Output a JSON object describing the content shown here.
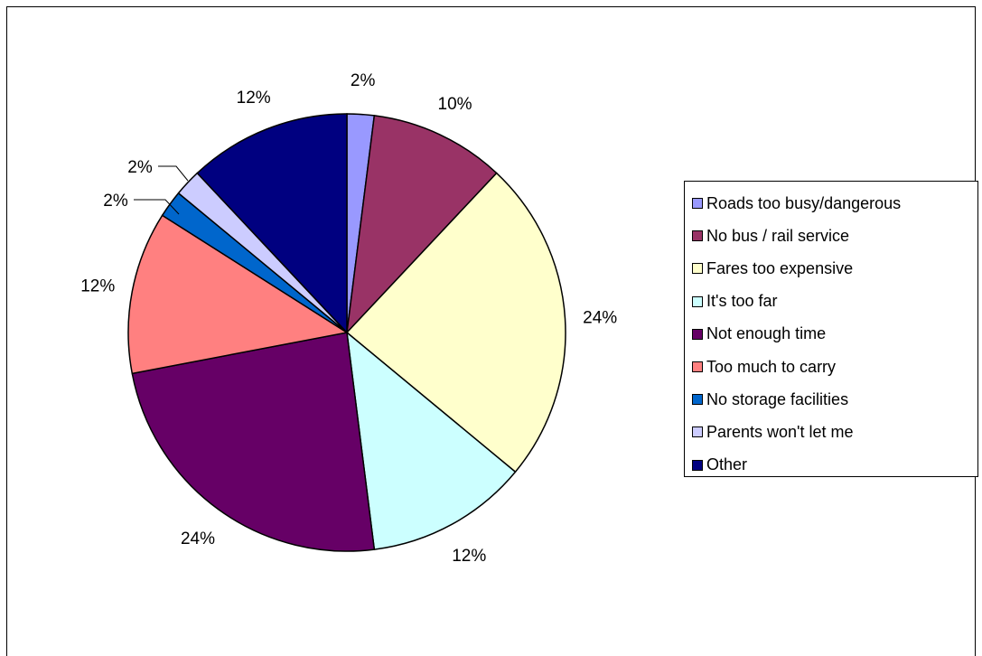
{
  "chart_data": {
    "type": "pie",
    "title": "",
    "legend_position": "right",
    "slices": [
      {
        "label": "Roads too busy/dangerous",
        "value": 2,
        "display": "2%",
        "color": "#9999FF"
      },
      {
        "label": "No bus / rail service",
        "value": 10,
        "display": "10%",
        "color": "#993366"
      },
      {
        "label": "Fares too expensive",
        "value": 24,
        "display": "24%",
        "color": "#FFFFCC"
      },
      {
        "label": "It's too far",
        "value": 12,
        "display": "12%",
        "color": "#CCFFFF"
      },
      {
        "label": "Not enough time",
        "value": 24,
        "display": "24%",
        "color": "#660066"
      },
      {
        "label": "Too much to carry",
        "value": 12,
        "display": "12%",
        "color": "#FF8080"
      },
      {
        "label": "No storage facilities",
        "value": 2,
        "display": "2%",
        "color": "#0066CC"
      },
      {
        "label": "Parents won't let me",
        "value": 2,
        "display": "2%",
        "color": "#CCCCFF"
      },
      {
        "label": "Other",
        "value": 12,
        "display": "12%",
        "color": "#000080"
      }
    ]
  }
}
